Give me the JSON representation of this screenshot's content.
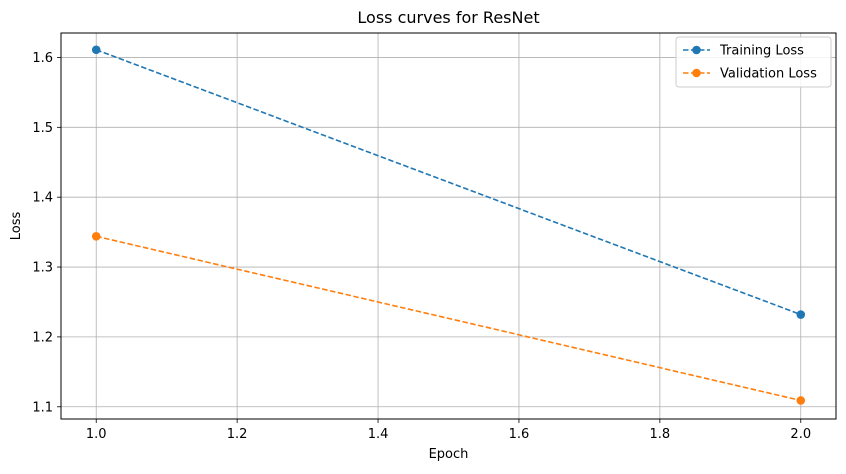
{
  "chart_data": {
    "type": "line",
    "title": "Loss curves for ResNet",
    "xlabel": "Epoch",
    "ylabel": "Loss",
    "xlim": [
      0.95,
      2.05
    ],
    "ylim": [
      1.0825,
      1.635
    ],
    "xticks": [
      1.0,
      1.2,
      1.4,
      1.6,
      1.8,
      2.0
    ],
    "xtick_labels": [
      "1.0",
      "1.2",
      "1.4",
      "1.6",
      "1.8",
      "2.0"
    ],
    "yticks": [
      1.1,
      1.2,
      1.3,
      1.4,
      1.5,
      1.6
    ],
    "ytick_labels": [
      "1.1",
      "1.2",
      "1.3",
      "1.4",
      "1.5",
      "1.6"
    ],
    "grid": true,
    "legend_position": "top-right",
    "series": [
      {
        "name": "Training Loss",
        "x": [
          1.0,
          2.0
        ],
        "y": [
          1.611,
          1.232
        ],
        "color": "#1f77b4",
        "line_style": "dashed",
        "marker": "circle"
      },
      {
        "name": "Validation Loss",
        "x": [
          1.0,
          2.0
        ],
        "y": [
          1.344,
          1.109
        ],
        "color": "#ff7f0e",
        "line_style": "dashed",
        "marker": "circle"
      }
    ]
  }
}
